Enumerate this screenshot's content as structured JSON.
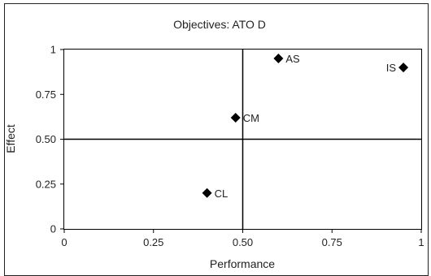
{
  "chart_data": {
    "type": "scatter",
    "title": "Objectives: ATO D",
    "xlabel": "Performance",
    "ylabel": "Effect",
    "xlim": [
      0,
      1
    ],
    "ylim": [
      0,
      1
    ],
    "x_ticks": [
      "0",
      "0.25",
      "0.50",
      "0.75",
      "1"
    ],
    "y_ticks": [
      "0",
      "0.25",
      "0.50",
      "0.75",
      "1"
    ],
    "reference_lines": {
      "x": 0.5,
      "y": 0.5
    },
    "points": [
      {
        "label": "AS",
        "x": 0.6,
        "y": 0.95,
        "label_side": "right"
      },
      {
        "label": "IS",
        "x": 0.95,
        "y": 0.9,
        "label_side": "left"
      },
      {
        "label": "CM",
        "x": 0.48,
        "y": 0.62,
        "label_side": "right"
      },
      {
        "label": "CL",
        "x": 0.4,
        "y": 0.2,
        "label_side": "right"
      }
    ],
    "marker": "diamond",
    "marker_color": "#000000",
    "grid": false
  }
}
